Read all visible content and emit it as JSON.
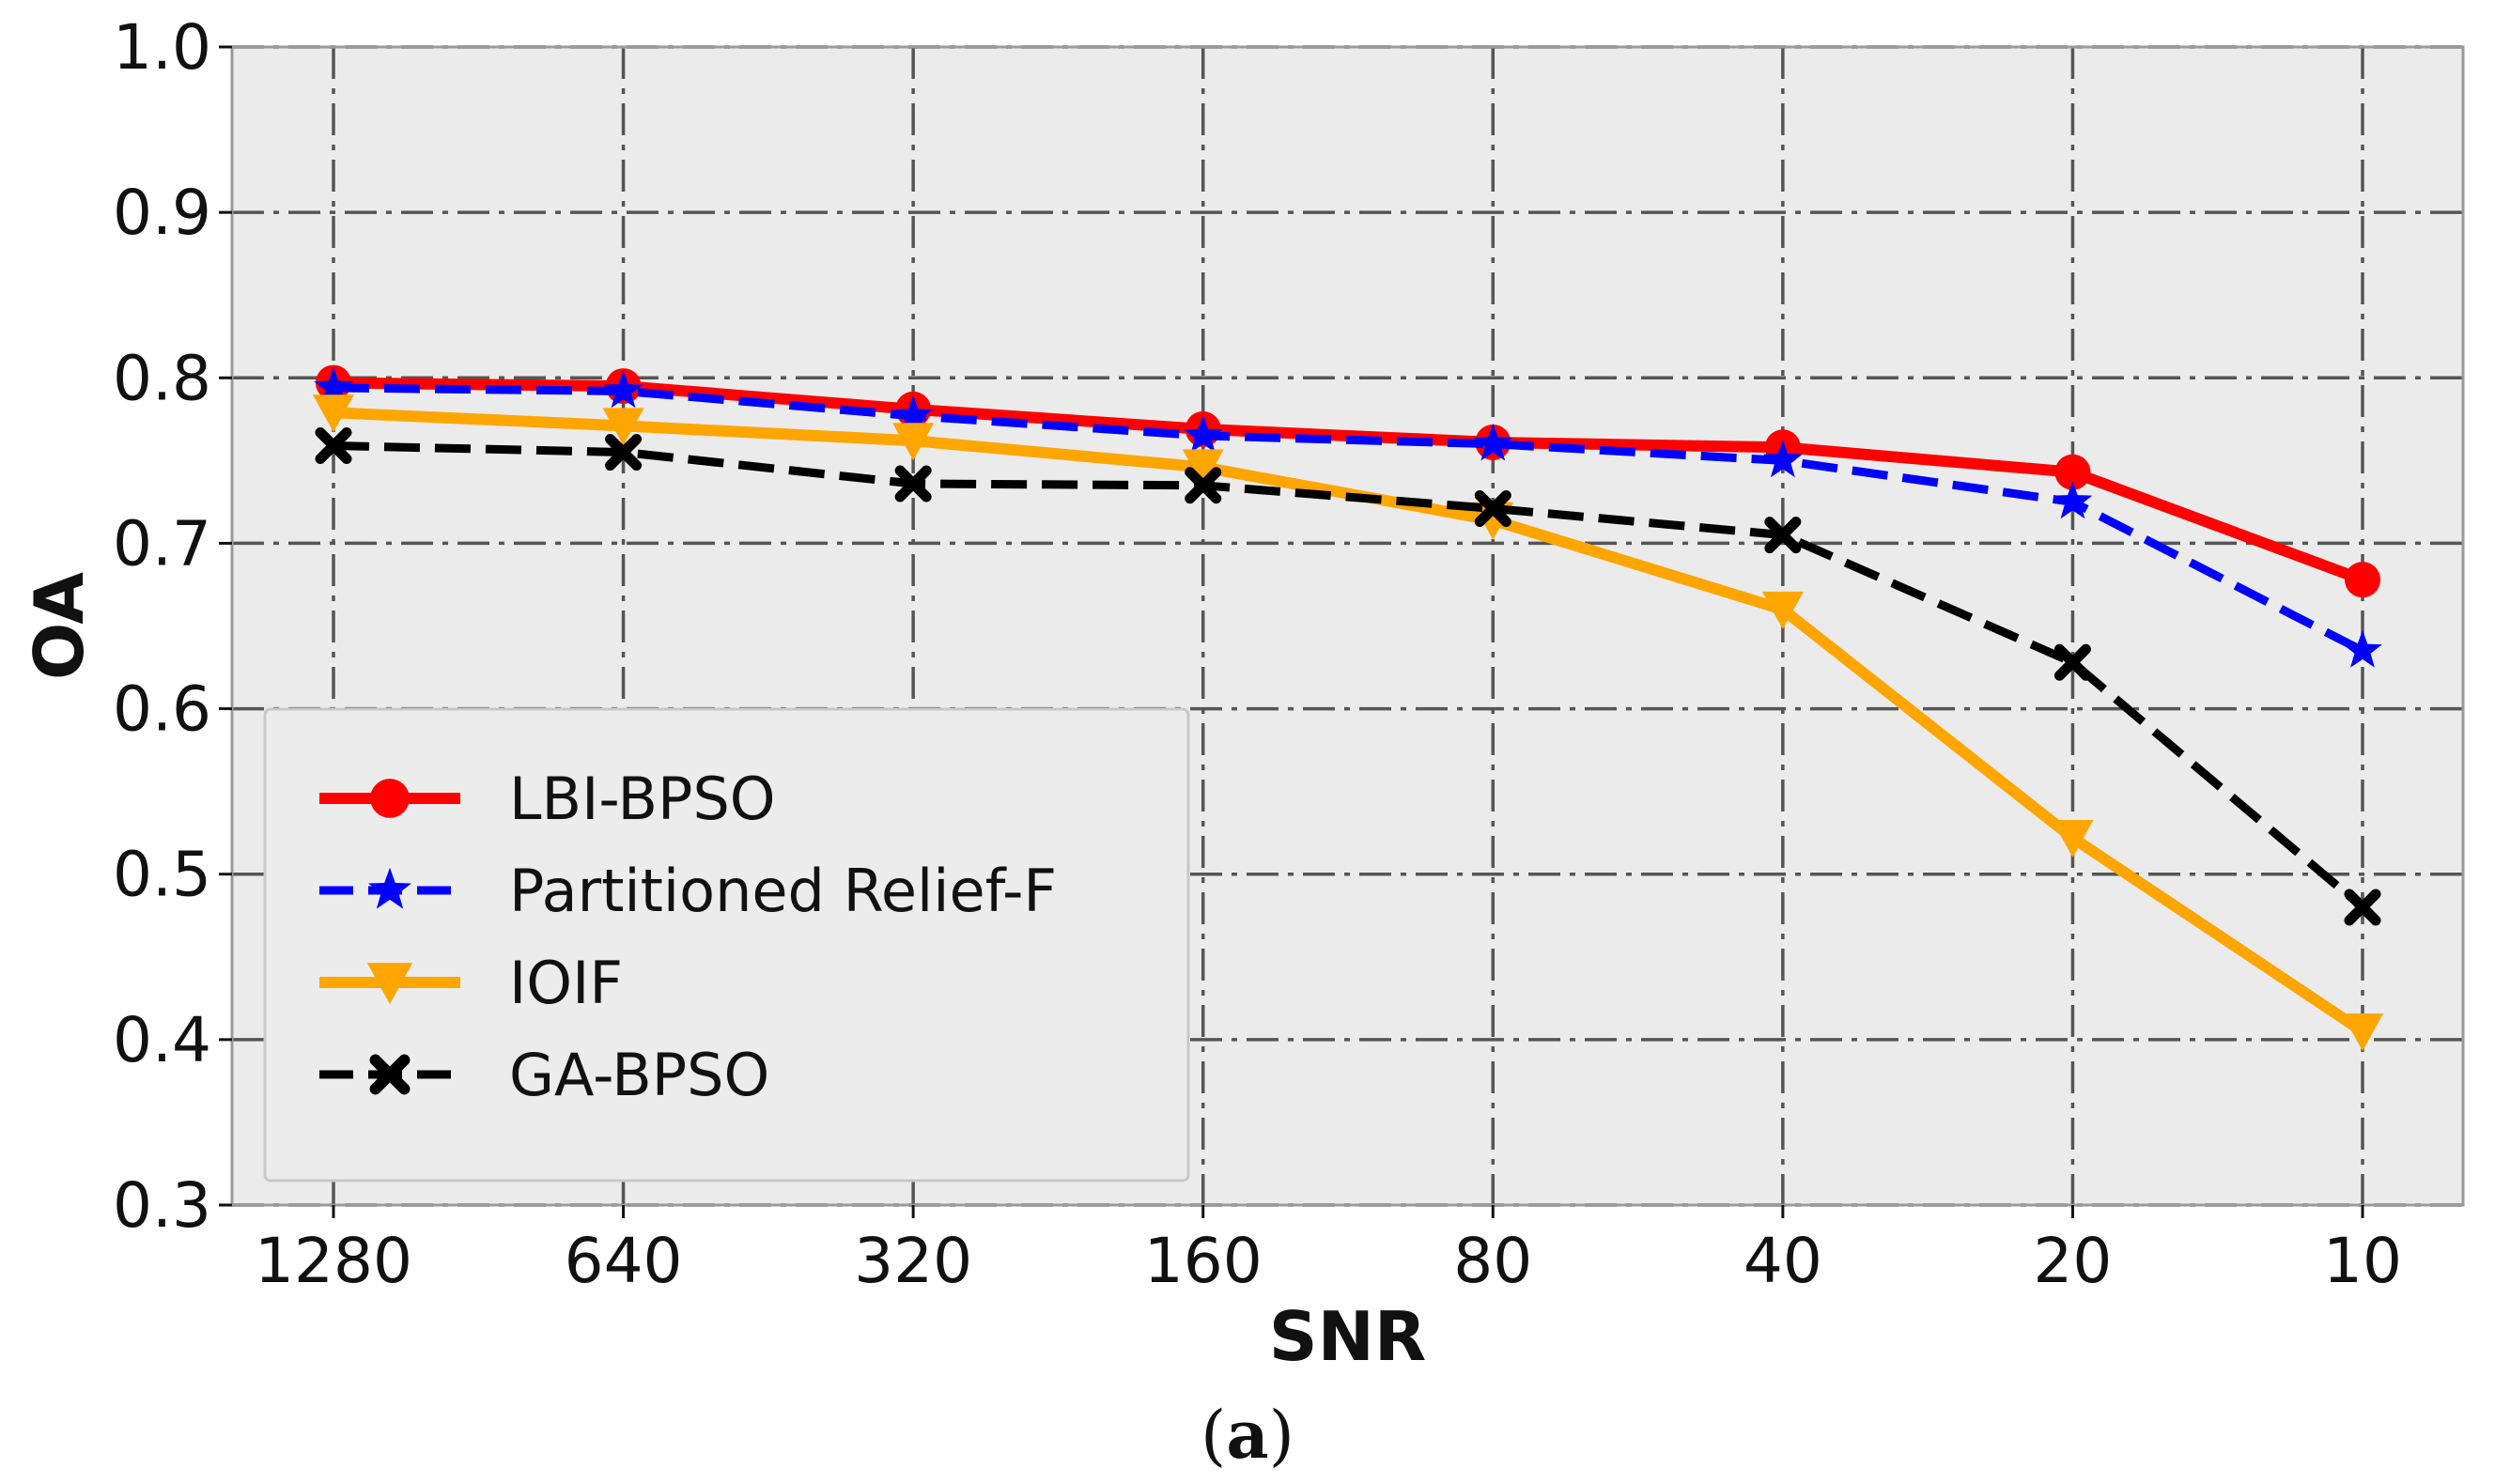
{
  "chart_data": {
    "type": "line",
    "title": "",
    "xlabel": "SNR",
    "ylabel": "OA",
    "categories": [
      "1280",
      "640",
      "320",
      "160",
      "80",
      "40",
      "20",
      "10"
    ],
    "ylim": [
      0.3,
      1.0
    ],
    "yticks": [
      "0.3",
      "0.4",
      "0.5",
      "0.6",
      "0.7",
      "0.8",
      "0.9",
      "1.0"
    ],
    "grid": true,
    "legend_position": "lower-left",
    "series": [
      {
        "name": "LBI-BPSO",
        "color": "#ff0000",
        "marker": "circle",
        "linestyle": "solid",
        "values": [
          0.797,
          0.795,
          0.781,
          0.769,
          0.761,
          0.758,
          0.743,
          0.678
        ]
      },
      {
        "name": "Partitioned Relief-F",
        "color": "#0000ff",
        "marker": "star",
        "linestyle": "dashed",
        "values": [
          0.794,
          0.792,
          0.777,
          0.765,
          0.76,
          0.75,
          0.725,
          0.635
        ]
      },
      {
        "name": "IOIF",
        "color": "#ffa500",
        "marker": "triangle-down",
        "linestyle": "solid",
        "values": [
          0.779,
          0.771,
          0.762,
          0.746,
          0.714,
          0.66,
          0.522,
          0.405
        ]
      },
      {
        "name": "GA-BPSO",
        "color": "#000000",
        "marker": "x",
        "linestyle": "dashed",
        "values": [
          0.759,
          0.755,
          0.736,
          0.735,
          0.721,
          0.705,
          0.628,
          0.48
        ]
      }
    ]
  },
  "caption": {
    "open": "(",
    "letter": "a",
    "close": ")"
  }
}
